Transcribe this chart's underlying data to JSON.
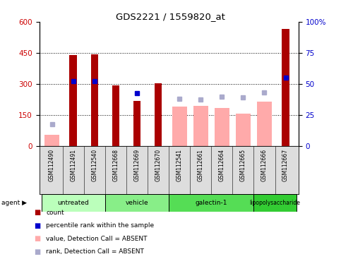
{
  "title": "GDS2221 / 1559820_at",
  "samples": [
    "GSM112490",
    "GSM112491",
    "GSM112540",
    "GSM112668",
    "GSM112669",
    "GSM112670",
    "GSM112541",
    "GSM112661",
    "GSM112664",
    "GSM112665",
    "GSM112666",
    "GSM112667"
  ],
  "groups": [
    {
      "label": "untreated",
      "indices": [
        0,
        1,
        2
      ],
      "color": "#bbffbb"
    },
    {
      "label": "vehicle",
      "indices": [
        3,
        4,
        5
      ],
      "color": "#88ee88"
    },
    {
      "label": "galectin-1",
      "indices": [
        6,
        7,
        8,
        9
      ],
      "color": "#55dd55"
    },
    {
      "label": "lipopolysaccharide",
      "indices": [
        10,
        11
      ],
      "color": "#33cc33"
    }
  ],
  "count_values": [
    null,
    440,
    443,
    295,
    220,
    305,
    null,
    null,
    null,
    null,
    null,
    565
  ],
  "rank_values": [
    null,
    315,
    315,
    null,
    255,
    null,
    null,
    null,
    null,
    null,
    null,
    330
  ],
  "absent_value": [
    55,
    null,
    null,
    null,
    null,
    null,
    190,
    195,
    185,
    158,
    215,
    null
  ],
  "absent_rank": [
    105,
    null,
    null,
    null,
    null,
    null,
    230,
    225,
    240,
    235,
    260,
    null
  ],
  "ylim": [
    0,
    600
  ],
  "y2lim": [
    0,
    100
  ],
  "yticks": [
    0,
    150,
    300,
    450,
    600
  ],
  "y2ticks": [
    0,
    25,
    50,
    75,
    100
  ],
  "bar_color_present": "#aa0000",
  "rank_color_present": "#0000cc",
  "bar_color_absent": "#ffaaaa",
  "rank_color_absent": "#aaaacc",
  "legend_items": [
    {
      "color": "#aa0000",
      "label": "count"
    },
    {
      "color": "#0000cc",
      "label": "percentile rank within the sample"
    },
    {
      "color": "#ffaaaa",
      "label": "value, Detection Call = ABSENT"
    },
    {
      "color": "#aaaacc",
      "label": "rank, Detection Call = ABSENT"
    }
  ]
}
